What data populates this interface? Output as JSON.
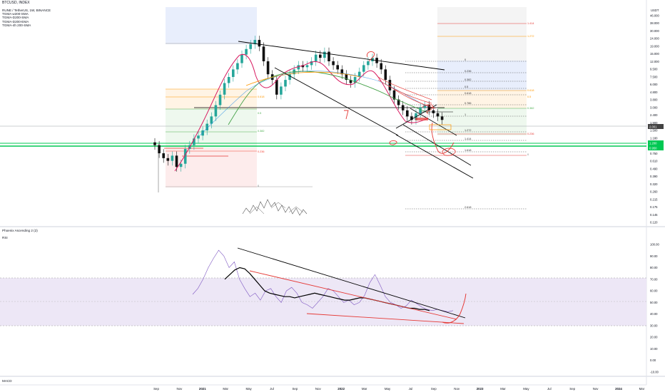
{
  "header": {
    "symbol": "BTCUSD, INDEX"
  },
  "legend": {
    "title": "RUNE / TetherUS, 1W, BINANCE",
    "lines": [
      "TGMA w200-SMA",
      "TGMA-D200-SMA",
      "TGMA-D200-EMA",
      "TGMA-4h 200-SMA"
    ]
  },
  "price_axis": {
    "currency": "USDT",
    "ticks": [
      "46.000",
      "38.000",
      "30.000",
      "24.000",
      "19.000",
      "15.000",
      "12.000",
      "9.500",
      "7.500",
      "6.000",
      "4.800",
      "3.800",
      "3.000",
      "2.400",
      "1.900",
      "1.500",
      "1.180",
      "0.950",
      "0.750",
      "0.610",
      "0.490",
      "0.390",
      "0.320",
      "0.260",
      "0.215",
      "0.175",
      "0.145",
      "0.120"
    ],
    "last_price": "2.001",
    "marker_1": "1.200",
    "marker_2": "0.950"
  },
  "fib_right": [
    "0",
    "0.236",
    "0.382",
    "0.5",
    "0.618",
    "0.786",
    "1",
    "1.272",
    "1.414",
    "1.618",
    "2.618"
  ],
  "fib_left": {
    "a": "0.618",
    "b": "0.5",
    "c": "0.382",
    "d": "0.236",
    "e": "0"
  },
  "fib_ext": {
    "a": "1.414",
    "b": "1.272",
    "c": "0.618",
    "d": "0.5",
    "e": "0.382",
    "f": "0.236",
    "g": "0"
  },
  "rsi": {
    "indicator": "Phoenix Ascending 2 (2)",
    "name": "RSI",
    "ticks": [
      "100.00",
      "90.00",
      "80.00",
      "70.00",
      "60.00",
      "50.00",
      "40.00",
      "30.00",
      "20.00",
      "10.00",
      "0.00",
      "-10.00"
    ]
  },
  "macd": {
    "name": "MACD"
  },
  "time_axis": [
    "Sep",
    "Nov",
    "2021",
    "Mar",
    "May",
    "Jul",
    "Sep",
    "Nov",
    "2022",
    "Mar",
    "May",
    "Jul",
    "Sep",
    "Nov",
    "2023",
    "Mar",
    "May",
    "Jul",
    "Sep",
    "Nov",
    "2024",
    "Mar"
  ],
  "colors": {
    "up": "#26a69a",
    "down": "#111111",
    "trend": "#000000",
    "red": "#e53935",
    "green": "#00c853",
    "magenta": "#d81b60",
    "rsi_band": "#ede7f6"
  },
  "chart_data": {
    "type": "candlestick",
    "title": "RUNE / TetherUS, 1W, BINANCE",
    "price_scale": "log",
    "price_range": [
      0.12,
      46
    ],
    "weekly_close_approx": [
      1.0,
      0.8,
      0.7,
      0.65,
      0.75,
      0.55,
      0.6,
      0.9,
      1.0,
      1.2,
      1.3,
      1.5,
      1.8,
      2.2,
      3.0,
      4.0,
      5.5,
      6.5,
      8.0,
      9.5,
      12,
      14,
      16,
      18,
      15,
      10,
      7,
      6,
      4.0,
      5.0,
      6.0,
      7.0,
      8.0,
      9.0,
      8.5,
      9.0,
      10,
      12,
      11,
      13,
      10,
      9.0,
      8.0,
      7.0,
      6.0,
      5.5,
      6.5,
      7.5,
      9.0,
      10,
      11,
      9.5,
      8.0,
      6.0,
      4.5,
      3.5,
      3.0,
      2.6,
      2.2,
      2.0,
      2.4,
      2.8,
      3.0,
      2.6,
      2.4,
      2.2,
      2.0
    ],
    "rsi_range": [
      -10,
      100
    ]
  }
}
